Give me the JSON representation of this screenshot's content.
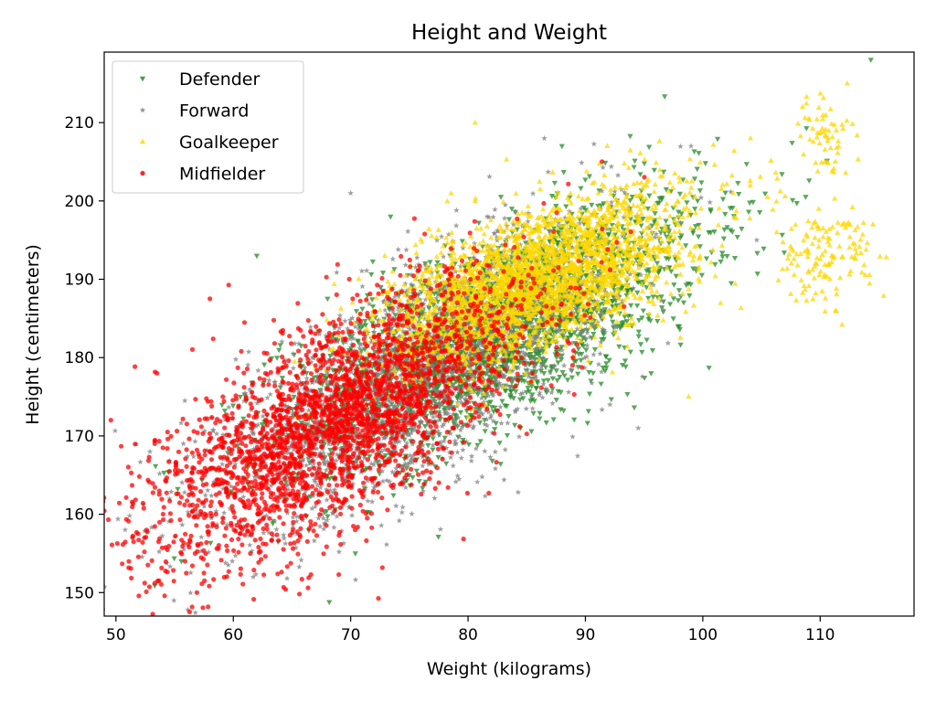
{
  "chart_data": {
    "type": "scatter",
    "title": "Height and Weight",
    "xlabel": "Weight (kilograms)",
    "ylabel": "Height (centimeters)",
    "xlim": [
      49,
      118
    ],
    "ylim": [
      147,
      219
    ],
    "xticks": [
      50,
      60,
      70,
      80,
      90,
      100,
      110
    ],
    "yticks": [
      150,
      160,
      170,
      180,
      190,
      200,
      210
    ],
    "grid": false,
    "legend_position": "upper-left",
    "series": [
      {
        "name": "Defender",
        "marker": "triangle-down",
        "color": "#228b22",
        "distribution": {
          "center_x": 82,
          "center_y": 183,
          "spread_x": 10.5,
          "spread_y": 10.0,
          "corr": 0.72
        },
        "points": [
          [
            70.4,
            155
          ],
          [
            100.5,
            196
          ],
          [
            95.6,
            178
          ],
          [
            62.0,
            193
          ],
          [
            73.4,
            198
          ],
          [
            88.0,
            207
          ],
          [
            75.0,
            165
          ],
          [
            98.0,
            184
          ]
        ]
      },
      {
        "name": "Forward",
        "marker": "star",
        "color": "#808080",
        "distribution": {
          "center_x": 76,
          "center_y": 178,
          "spread_x": 9.5,
          "spread_y": 10.5,
          "corr": 0.72
        },
        "points": [
          [
            52.9,
            168
          ],
          [
            61.7,
            152
          ],
          [
            104.6,
            195
          ],
          [
            99.0,
            207
          ],
          [
            86.5,
            208
          ],
          [
            70.0,
            201
          ],
          [
            94.5,
            171
          ]
        ]
      },
      {
        "name": "Goalkeeper",
        "marker": "triangle-up",
        "color": "#ffd700",
        "distribution": {
          "center_x": 86,
          "center_y": 190,
          "spread_x": 7.5,
          "spread_y": 6.5,
          "corr": 0.6
        },
        "points": [
          [
            80.6,
            210
          ],
          [
            112.3,
            215
          ],
          [
            114.5,
            197
          ],
          [
            111.3,
            186
          ],
          [
            108.5,
            212
          ],
          [
            106.3,
            196
          ],
          [
            102.6,
            201
          ],
          [
            98.8,
            175
          ]
        ],
        "clusters": [
          {
            "center_x": 110.5,
            "center_y": 208,
            "spread_x": 1.2,
            "spread_y": 3.2,
            "count": 60
          },
          {
            "center_x": 110.3,
            "center_y": 193,
            "spread_x": 2.0,
            "spread_y": 3.0,
            "count": 130
          }
        ]
      },
      {
        "name": "Midfielder",
        "marker": "circle",
        "color": "#ff0000",
        "distribution": {
          "center_x": 69,
          "center_y": 172,
          "spread_x": 9.5,
          "spread_y": 10.5,
          "corr": 0.7
        },
        "points": [
          [
            51.9,
            157.5
          ],
          [
            53.5,
            178
          ],
          [
            56.9,
            150
          ],
          [
            57.5,
            152.5
          ],
          [
            58.0,
            187.5
          ],
          [
            54.0,
            168.5
          ]
        ]
      }
    ]
  }
}
